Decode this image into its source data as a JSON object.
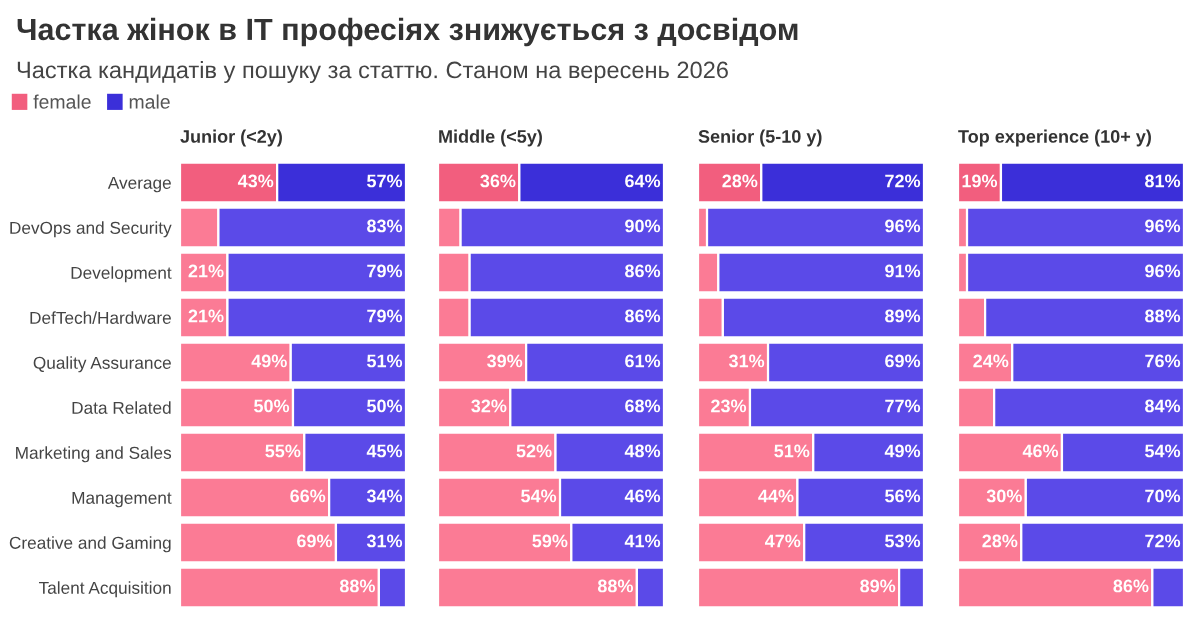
{
  "chart_data": [
    {
      "type": "other",
      "title": "Частка жінок в IT професіях знижується з досвідом",
      "subtitle": "Частка кандидатів у пошуку за статтю. Станом на вересень 2026"
    },
    {
      "type": "bar",
      "orientation": "horizontal",
      "stacked": true,
      "title": "Junior (<2y)",
      "legend": "top left",
      "tick_labels": "y",
      "xlim": [
        0,
        100
      ],
      "categories": [
        "Average",
        "DevOps and Security",
        "Development",
        "DefTech/Hardware",
        "Quality Assurance",
        "Data Related",
        "Marketing and Sales",
        "Management",
        "Creative and Gaming",
        "Talent Acquisition"
      ],
      "series": [
        {
          "name": "female",
          "color": "#f25e7e",
          "colors": [
            "#f25e7e",
            "#fb7b95",
            "#fb7b95",
            "#fb7b95",
            "#fb7b95",
            "#fb7b95",
            "#fb7b95",
            "#fb7b95",
            "#fb7b95",
            "#fb7b95"
          ],
          "values": [
            43,
            17,
            21,
            21,
            49,
            50,
            55,
            66,
            69,
            88
          ],
          "value_labels": [
            "43%",
            null,
            "21%",
            "21%",
            "49%",
            "50%",
            "55%",
            "66%",
            "69%",
            "88%"
          ]
        },
        {
          "name": "male",
          "color": "#3b2fd9",
          "colors": [
            "#3b2fd9",
            "#5b4ae8",
            "#5b4ae8",
            "#5b4ae8",
            "#5b4ae8",
            "#5b4ae8",
            "#5b4ae8",
            "#5b4ae8",
            "#5b4ae8",
            "#5b4ae8"
          ],
          "values": [
            57,
            83,
            79,
            79,
            51,
            50,
            45,
            34,
            31,
            12
          ],
          "value_labels": [
            "57%",
            "83%",
            "79%",
            "79%",
            "51%",
            "50%",
            "45%",
            "34%",
            "31%",
            null
          ]
        }
      ]
    },
    {
      "type": "bar",
      "orientation": "horizontal",
      "stacked": true,
      "title": "Middle (<5y)",
      "tick_labels": false,
      "xlim": [
        0,
        100
      ],
      "categories": [
        null,
        null,
        null,
        null,
        null,
        null,
        null,
        null,
        null,
        null
      ],
      "series": [
        {
          "colors": [
            "#f25e7e",
            "#fb7b95",
            "#fb7b95",
            "#fb7b95",
            "#fb7b95",
            "#fb7b95",
            "#fb7b95",
            "#fb7b95",
            "#fb7b95",
            "#fb7b95"
          ],
          "values": [
            36,
            10,
            14,
            14,
            39,
            32,
            52,
            54,
            59,
            88
          ],
          "value_labels": [
            "36%",
            null,
            null,
            null,
            "39%",
            "32%",
            "52%",
            "54%",
            "59%",
            "88%"
          ]
        },
        {
          "colors": [
            "#3b2fd9",
            "#5b4ae8",
            "#5b4ae8",
            "#5b4ae8",
            "#5b4ae8",
            "#5b4ae8",
            "#5b4ae8",
            "#5b4ae8",
            "#5b4ae8",
            "#5b4ae8"
          ],
          "values": [
            64,
            90,
            86,
            86,
            61,
            68,
            48,
            46,
            41,
            12
          ],
          "value_labels": [
            "64%",
            "90%",
            "86%",
            "86%",
            "61%",
            "68%",
            "48%",
            "46%",
            "41%",
            null
          ]
        }
      ]
    },
    {
      "type": "bar",
      "orientation": "horizontal",
      "stacked": true,
      "title": "Senior (5-10 y)",
      "tick_labels": false,
      "xlim": [
        0,
        100
      ],
      "categories": [
        null,
        null,
        null,
        null,
        null,
        null,
        null,
        null,
        null,
        null
      ],
      "series": [
        {
          "colors": [
            "#f25e7e",
            "#fb7b95",
            "#fb7b95",
            "#fb7b95",
            "#fb7b95",
            "#fb7b95",
            "#fb7b95",
            "#fb7b95",
            "#fb7b95",
            "#fb7b95"
          ],
          "values": [
            28,
            4,
            9,
            11,
            31,
            23,
            51,
            44,
            47,
            89
          ],
          "value_labels": [
            "28%",
            null,
            null,
            null,
            "31%",
            "23%",
            "51%",
            "44%",
            "47%",
            "89%"
          ]
        },
        {
          "colors": [
            "#3b2fd9",
            "#5b4ae8",
            "#5b4ae8",
            "#5b4ae8",
            "#5b4ae8",
            "#5b4ae8",
            "#5b4ae8",
            "#5b4ae8",
            "#5b4ae8",
            "#5b4ae8"
          ],
          "values": [
            72,
            96,
            91,
            89,
            69,
            77,
            49,
            56,
            53,
            11
          ],
          "value_labels": [
            "72%",
            "96%",
            "91%",
            "89%",
            "69%",
            "77%",
            "49%",
            "56%",
            "53%",
            null
          ]
        }
      ]
    },
    {
      "type": "bar",
      "orientation": "horizontal",
      "stacked": true,
      "title": "Top experience (10+ y)",
      "tick_labels": false,
      "xlim": [
        0,
        100
      ],
      "categories": [
        null,
        null,
        null,
        null,
        null,
        null,
        null,
        null,
        null,
        null
      ],
      "series": [
        {
          "colors": [
            "#f25e7e",
            "#fb7b95",
            "#fb7b95",
            "#fb7b95",
            "#fb7b95",
            "#fb7b95",
            "#fb7b95",
            "#fb7b95",
            "#fb7b95",
            "#fb7b95"
          ],
          "values": [
            19,
            4,
            4,
            12,
            24,
            16,
            46,
            30,
            28,
            86
          ],
          "value_labels": [
            "19%",
            null,
            null,
            null,
            "24%",
            null,
            "46%",
            "30%",
            "28%",
            "86%"
          ]
        },
        {
          "colors": [
            "#3b2fd9",
            "#5b4ae8",
            "#5b4ae8",
            "#5b4ae8",
            "#5b4ae8",
            "#5b4ae8",
            "#5b4ae8",
            "#5b4ae8",
            "#5b4ae8",
            "#5b4ae8"
          ],
          "values": [
            81,
            96,
            96,
            88,
            76,
            84,
            54,
            70,
            72,
            14
          ],
          "value_labels": [
            "81%",
            "96%",
            "96%",
            "88%",
            "76%",
            "84%",
            "54%",
            "70%",
            "72%",
            null
          ]
        }
      ]
    }
  ]
}
